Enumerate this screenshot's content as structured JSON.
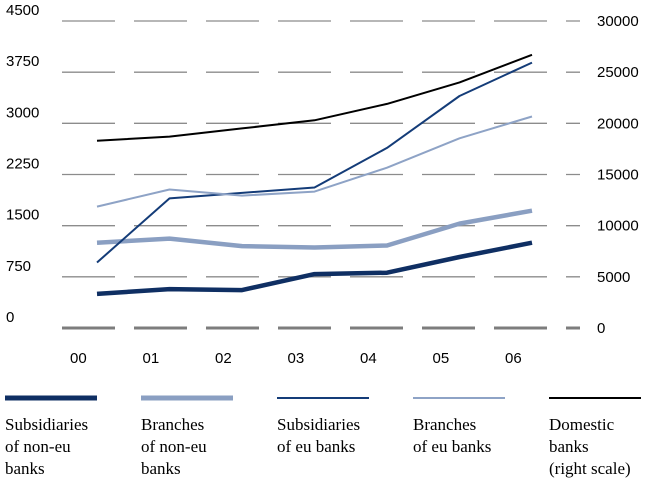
{
  "chart_data": {
    "type": "line",
    "title": "",
    "x": [
      "00",
      "01",
      "02",
      "03",
      "04",
      "05",
      "06"
    ],
    "y_left": {
      "ticks": [
        "4500",
        "3750",
        "3000",
        "2250",
        "1500",
        "750",
        "0"
      ],
      "ylim": [
        0,
        4500
      ]
    },
    "y_right": {
      "ticks": [
        "30000",
        "25000",
        "20000",
        "15000",
        "10000",
        "5000",
        "0"
      ],
      "ylim": [
        0,
        30000
      ]
    },
    "grid": "horizontal dashed",
    "legend_position": "bottom",
    "series": [
      {
        "name": "Subsidiaries of non-EU banks",
        "legend_lines": [
          "Subsidiaries",
          "of non-eu",
          "banks"
        ],
        "axis": "left",
        "color": "#0f2f63",
        "style": "thick",
        "values": [
          500,
          570,
          555,
          790,
          810,
          1040,
          1250
        ]
      },
      {
        "name": "Branches of non-EU banks",
        "legend_lines": [
          "Branches",
          "of non-eu",
          "banks"
        ],
        "axis": "left",
        "color": "#8a9fc2",
        "style": "thick",
        "values": [
          1250,
          1310,
          1200,
          1180,
          1210,
          1530,
          1720
        ]
      },
      {
        "name": "Subsidiaries of EU banks",
        "legend_lines": [
          "Subsidiaries",
          "of eu banks"
        ],
        "axis": "left",
        "color": "#143c78",
        "style": "thin",
        "values": [
          960,
          1900,
          1980,
          2060,
          2640,
          3400,
          3890
        ]
      },
      {
        "name": "Branches of EU banks",
        "legend_lines": [
          "Branches",
          "of eu banks"
        ],
        "axis": "left",
        "color": "#8ea3c6",
        "style": "thin",
        "values": [
          1780,
          2030,
          1940,
          2000,
          2350,
          2780,
          3100
        ]
      },
      {
        "name": "Domestic banks (right scale)",
        "legend_lines": [
          "Domestic",
          "banks",
          "(right scale)"
        ],
        "axis": "right",
        "color": "#000000",
        "style": "thin",
        "values": [
          18300,
          18700,
          19500,
          20300,
          21900,
          24000,
          26700
        ]
      }
    ]
  }
}
